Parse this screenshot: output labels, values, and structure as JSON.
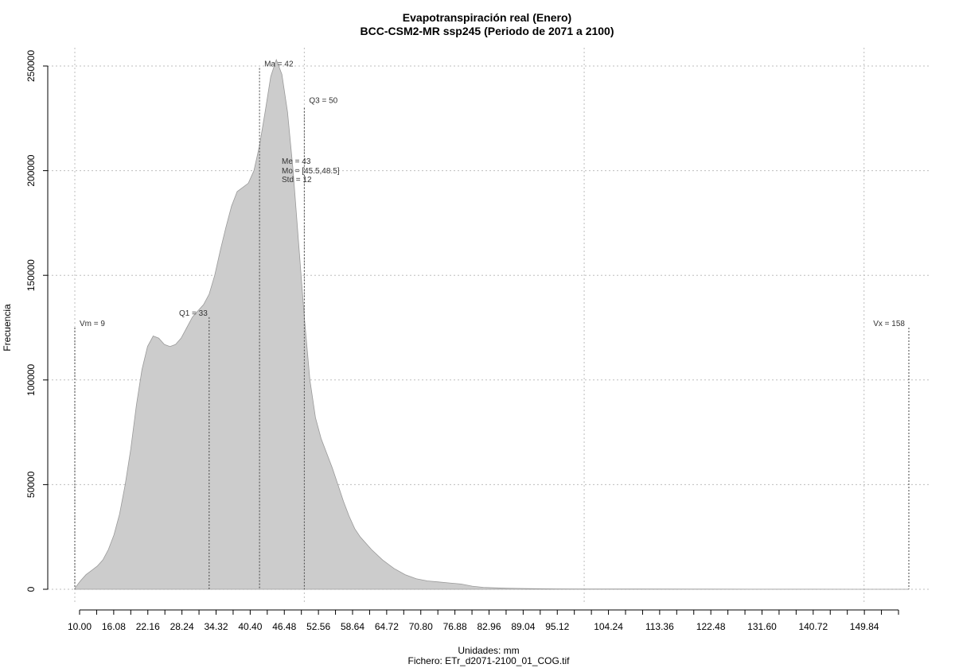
{
  "chart_data": {
    "type": "area",
    "title": "Evapotranspiración real (Enero)",
    "subtitle": "BCC-CSM2-MR ssp245 (Periodo de 2071 a 2100)",
    "xlabel": "Unidades: mm",
    "caption": "Fichero: ETr_d2071-2100_01_COG.tif",
    "ylabel": "Frecuencia",
    "xlim": [
      9,
      158
    ],
    "ylim": [
      0,
      250000
    ],
    "x_ticks": [
      10.0,
      13.04,
      16.08,
      19.12,
      22.16,
      25.2,
      28.24,
      31.28,
      34.32,
      37.36,
      40.4,
      43.44,
      46.48,
      49.52,
      52.56,
      55.6,
      58.64,
      61.68,
      64.72,
      67.76,
      70.8,
      73.84,
      76.88,
      79.92,
      82.96,
      86.0,
      89.04,
      92.08,
      95.12,
      98.16,
      101.2,
      104.24,
      107.28,
      110.32,
      113.36,
      116.4,
      119.44,
      122.48,
      125.52,
      128.56,
      131.6,
      134.64,
      137.68,
      140.72,
      143.76,
      146.8,
      149.84,
      152.88,
      155.92
    ],
    "x_tick_labels": [
      "10.00",
      "16.08",
      "22.16",
      "28.24",
      "34.32",
      "40.40",
      "46.48",
      "52.56",
      "58.64",
      "64.72",
      "70.80",
      "76.88",
      "82.96",
      "89.04",
      "95.12",
      "104.24",
      "113.36",
      "122.48",
      "131.60",
      "140.72",
      "149.84"
    ],
    "y_ticks": [
      0,
      50000,
      100000,
      150000,
      200000,
      250000
    ],
    "y_tick_labels": [
      "0",
      "50000",
      "100000",
      "150000",
      "200000",
      "250000"
    ],
    "x_grid": [
      9,
      50,
      100,
      150
    ],
    "y_grid": [
      0,
      50000,
      100000,
      150000,
      200000,
      250000
    ],
    "grid": true,
    "fill_color": "#cccccc",
    "edge_color": "#999999",
    "series": [
      {
        "x": [
          9,
          10,
          11,
          12,
          13,
          14,
          15,
          16,
          17,
          18,
          19,
          20,
          21,
          22,
          23,
          24,
          25,
          26,
          27,
          28,
          29,
          30,
          31,
          32,
          33,
          34,
          35,
          36,
          37,
          38,
          39,
          40,
          41,
          42,
          43,
          44,
          45,
          46,
          47,
          48,
          49,
          50,
          51,
          52,
          53,
          54,
          55,
          56,
          57,
          58,
          59,
          60,
          62,
          64,
          66,
          68,
          70,
          72,
          74,
          76,
          78,
          80,
          82,
          84,
          86,
          88,
          90,
          95,
          100,
          110,
          120,
          130,
          140,
          150,
          158
        ],
        "y": [
          500,
          4000,
          7000,
          9000,
          11000,
          14000,
          19000,
          26000,
          36000,
          50000,
          67000,
          88000,
          105000,
          116000,
          121000,
          120000,
          117000,
          116000,
          117000,
          120000,
          125000,
          130000,
          133000,
          136000,
          141000,
          150000,
          162000,
          173000,
          183000,
          190000,
          192000,
          194000,
          200000,
          212000,
          228000,
          245000,
          253000,
          246000,
          228000,
          200000,
          165000,
          130000,
          100000,
          82000,
          72000,
          65000,
          58000,
          50000,
          42000,
          35000,
          29000,
          25000,
          19000,
          14000,
          10000,
          7000,
          5000,
          4000,
          3500,
          3000,
          2500,
          1500,
          900,
          700,
          500,
          400,
          300,
          200,
          150,
          100,
          60,
          40,
          20,
          10,
          0
        ]
      }
    ],
    "annotations": [
      {
        "label": "Vm = 9",
        "x": 9,
        "y": 125000
      },
      {
        "label": "Q1 = 33",
        "x": 33,
        "y": 130000
      },
      {
        "label": "Ma = 42",
        "x": 42,
        "y": 249000
      },
      {
        "label": "Q3 = 50",
        "x": 50,
        "y": 230000
      },
      {
        "label": "Vx = 158",
        "x": 158,
        "y": 125000
      }
    ],
    "stats": {
      "me": "Me = 43",
      "mo": "Mo = [45.5,48.5]",
      "std": "Std = 12"
    }
  }
}
